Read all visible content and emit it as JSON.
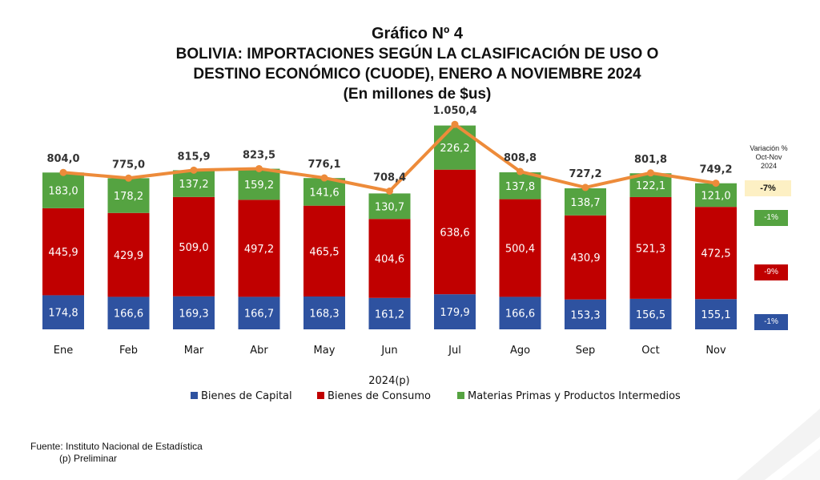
{
  "titles": {
    "line1": "Gráfico Nº 4",
    "line2": "BOLIVIA: IMPORTACIONES SEGÚN LA CLASIFICACIÓN DE USO O",
    "line3": "DESTINO ECONÓMICO (CUODE), ENERO A NOVIEMBRE 2024",
    "line4": "(En millones de $us)"
  },
  "chart_data": {
    "type": "bar",
    "stacked": true,
    "categories": [
      "Ene",
      "Feb",
      "Mar",
      "Abr",
      "May",
      "Jun",
      "Jul",
      "Ago",
      "Sep",
      "Oct",
      "Nov"
    ],
    "categories_display": [
      "Ene",
      "Feb",
      "Mar",
      "Abr",
      "May",
      "Jun",
      "Jul",
      "Ago",
      "Sep",
      "Oct",
      "Nov"
    ],
    "xlabel": "2024(p)",
    "series": [
      {
        "name": "Bienes de Capital",
        "color": "#2e52a0",
        "values": [
          174.8,
          166.6,
          169.3,
          166.7,
          168.3,
          161.2,
          179.9,
          166.6,
          153.3,
          156.5,
          155.1
        ],
        "labels": [
          "174,8",
          "166,6",
          "169,3",
          "166,7",
          "168,3",
          "161,2",
          "179,9",
          "166,6",
          "153,3",
          "156,5",
          "155,1"
        ]
      },
      {
        "name": "Bienes de Consumo",
        "color": "#c00000",
        "values": [
          445.9,
          429.9,
          509.0,
          497.2,
          465.5,
          404.6,
          638.6,
          500.4,
          430.9,
          521.3,
          472.5
        ],
        "labels": [
          "445,9",
          "429,9",
          "509,0",
          "497,2",
          "465,5",
          "404,6",
          "638,6",
          "500,4",
          "430,9",
          "521,3",
          "472,5"
        ]
      },
      {
        "name": "Materias Primas y Productos Intermedios",
        "color": "#55a341",
        "values": [
          183.0,
          178.2,
          137.2,
          159.2,
          141.6,
          130.7,
          226.2,
          137.8,
          138.7,
          122.1,
          121.0
        ],
        "labels": [
          "183,0",
          "178,2",
          "137,2",
          "159,2",
          "141,6",
          "130,7",
          "226,2",
          "137,8",
          "138,7",
          "122,1",
          "121,0"
        ]
      }
    ],
    "totals": {
      "color": "#ed8b3a",
      "values": [
        804.0,
        775.0,
        815.9,
        823.5,
        776.1,
        708.4,
        1050.4,
        808.8,
        727.2,
        801.8,
        749.2
      ],
      "labels": [
        "804,0",
        "775,0",
        "815,9",
        "823,5",
        "776,1",
        "708,4",
        "1.050,4",
        "808,8",
        "727,2",
        "801,8",
        "749,2"
      ]
    },
    "ylim": [
      0,
      1100
    ],
    "grid": false,
    "legend_position": "bottom"
  },
  "variation": {
    "header_line1": "Variación %",
    "header_line2": "Oct-Nov",
    "header_line3": "2024",
    "total": "-7%",
    "materias_primas": "-1%",
    "bienes_consumo": "-9%",
    "bienes_capital": "-1%"
  },
  "footer": {
    "source": "Fuente: Instituto Nacional de Estadística",
    "note": "(p) Preliminar"
  }
}
